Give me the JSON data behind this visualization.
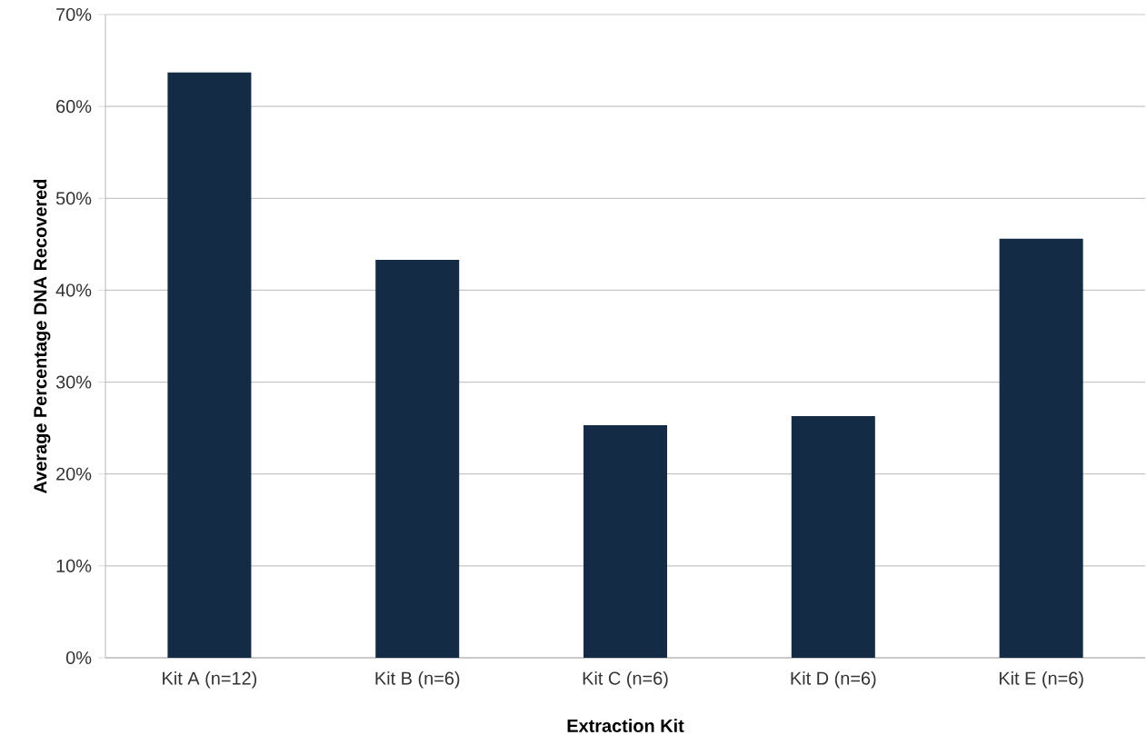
{
  "chart_data": {
    "type": "bar",
    "xlabel": "Extraction Kit",
    "ylabel": "Average Percentage DNA Recovered",
    "categories": [
      "Kit A (n=12)",
      "Kit B (n=6)",
      "Kit C (n=6)",
      "Kit D (n=6)",
      "Kit E (n=6)"
    ],
    "values": [
      63.7,
      43.3,
      25.3,
      26.3,
      45.6
    ],
    "color": "#132b45",
    "ylim": [
      0,
      70
    ],
    "yticks": [
      {
        "value": 0,
        "label": "0%"
      },
      {
        "value": 10,
        "label": "10%"
      },
      {
        "value": 20,
        "label": "20%"
      },
      {
        "value": 30,
        "label": "30%"
      },
      {
        "value": 40,
        "label": "40%"
      },
      {
        "value": 50,
        "label": "50%"
      },
      {
        "value": 60,
        "label": "60%"
      },
      {
        "value": 70,
        "label": "70%"
      }
    ],
    "grid": "y"
  }
}
